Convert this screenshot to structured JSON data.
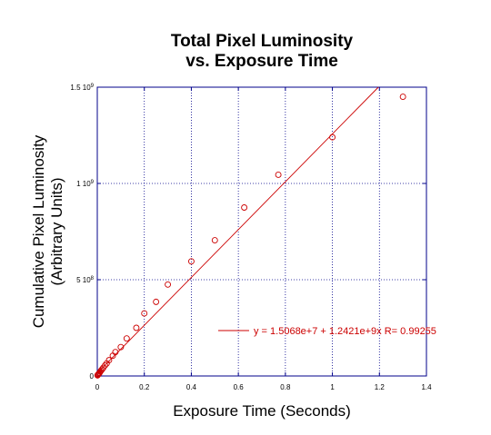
{
  "chart_data": {
    "type": "scatter",
    "title_line1": "Total Pixel Luminosity",
    "title_line2": "vs. Exposure Time",
    "xlabel": "Exposure Time (Seconds)",
    "ylabel_line1": "Cumulative Pixel Luminosity",
    "ylabel_line2": "(Arbitrary Units)",
    "xlim": [
      0,
      1.4
    ],
    "ylim": [
      0,
      1500000000
    ],
    "x_ticks": [
      0,
      0.2,
      0.4,
      0.6,
      0.8,
      1,
      1.2,
      1.4
    ],
    "x_tick_labels": [
      "0",
      "0.2",
      "0.4",
      "0.6",
      "0.8",
      "1",
      "1.2",
      "1.4"
    ],
    "y_ticks": [
      0,
      500000000,
      1000000000,
      1500000000
    ],
    "y_tick_labels": [
      {
        "mantissa": "0",
        "exp": ""
      },
      {
        "mantissa": "5 10",
        "exp": "8"
      },
      {
        "mantissa": "1 10",
        "exp": "9"
      },
      {
        "mantissa": "1.5 10",
        "exp": "9"
      }
    ],
    "grid": true,
    "points": [
      {
        "x": 0.001,
        "y": 3000000
      },
      {
        "x": 0.002,
        "y": 5000000
      },
      {
        "x": 0.004,
        "y": 8000000
      },
      {
        "x": 0.005,
        "y": 10000000
      },
      {
        "x": 0.008,
        "y": 14000000
      },
      {
        "x": 0.01,
        "y": 17000000
      },
      {
        "x": 0.0125,
        "y": 22000000
      },
      {
        "x": 0.016,
        "y": 28000000
      },
      {
        "x": 0.02,
        "y": 34000000
      },
      {
        "x": 0.025,
        "y": 42000000
      },
      {
        "x": 0.033,
        "y": 55000000
      },
      {
        "x": 0.04,
        "y": 65000000
      },
      {
        "x": 0.05,
        "y": 82000000
      },
      {
        "x": 0.066,
        "y": 105000000
      },
      {
        "x": 0.077,
        "y": 124000000
      },
      {
        "x": 0.1,
        "y": 150000000
      },
      {
        "x": 0.125,
        "y": 195000000
      },
      {
        "x": 0.166,
        "y": 250000000
      },
      {
        "x": 0.2,
        "y": 325000000
      },
      {
        "x": 0.25,
        "y": 385000000
      },
      {
        "x": 0.3,
        "y": 475000000
      },
      {
        "x": 0.4,
        "y": 595000000
      },
      {
        "x": 0.5,
        "y": 705000000
      },
      {
        "x": 0.625,
        "y": 875000000
      },
      {
        "x": 0.77,
        "y": 1045000000
      },
      {
        "x": 1.0,
        "y": 1240000000
      },
      {
        "x": 1.3,
        "y": 1450000000
      }
    ],
    "fit": {
      "intercept": 15068000,
      "slope": 1242100000
    },
    "legend_text": "y = 1.5068e+7 + 1.2421e+9x   R= 0.99255",
    "colors": {
      "data": "#cc0000",
      "axes": "#00008b",
      "grid": "#00008b"
    }
  }
}
